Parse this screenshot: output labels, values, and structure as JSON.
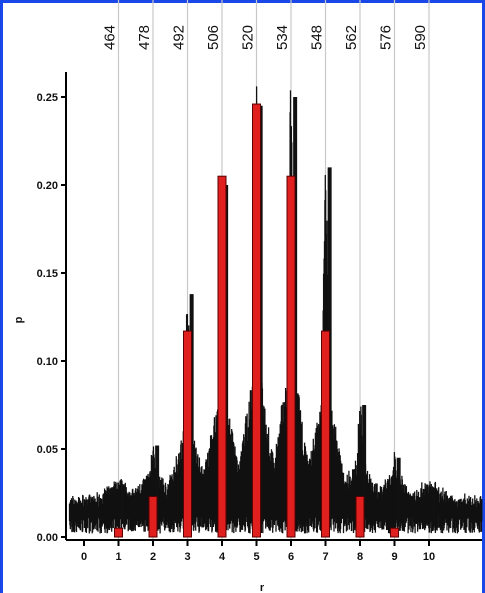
{
  "chart_data": {
    "type": "bar",
    "title": "",
    "xlabel": "r",
    "ylabel": "p",
    "x_ticks": [
      "0",
      "1",
      "2",
      "3",
      "4",
      "5",
      "6",
      "7",
      "8",
      "9",
      "10"
    ],
    "y_ticks": [
      "0.00",
      "0.05",
      "0.10",
      "0.15",
      "0.20",
      "0.25"
    ],
    "ylim": [
      0,
      0.27
    ],
    "top_axis_labels": [
      "464",
      "478",
      "492",
      "506",
      "520",
      "534",
      "548",
      "562",
      "576",
      "590"
    ],
    "top_axis_positions": [
      1,
      2,
      3,
      4,
      5,
      6,
      7,
      8,
      9,
      10
    ],
    "series": [
      {
        "values": [
          {
            "x": 1,
            "y": 0.005
          },
          {
            "x": 2,
            "y": 0.023
          },
          {
            "x": 3,
            "y": 0.117
          },
          {
            "x": 4,
            "y": 0.205
          },
          {
            "x": 5,
            "y": 0.246
          },
          {
            "x": 6,
            "y": 0.205
          },
          {
            "x": 7,
            "y": 0.117
          },
          {
            "x": 8,
            "y": 0.023
          },
          {
            "x": 9,
            "y": 0.005
          }
        ]
      },
      {
        "style": "noisy-spectrum",
        "peaks": [
          {
            "x": 1,
            "y": 0.03
          },
          {
            "x": 2,
            "y": 0.052
          },
          {
            "x": 3,
            "y": 0.138
          },
          {
            "x": 4,
            "y": 0.2
          },
          {
            "x": 5,
            "y": 0.245
          },
          {
            "x": 6,
            "y": 0.25
          },
          {
            "x": 7,
            "y": 0.21
          },
          {
            "x": 8,
            "y": 0.075
          },
          {
            "x": 9,
            "y": 0.045
          },
          {
            "x": 10,
            "y": 0.028
          }
        ],
        "baseline": 0.02
      }
    ],
    "grid": "vertical lines at top-axis positions",
    "colors": {
      "bars": "#e0201e",
      "spectrum": "#111111",
      "frame": "#1a47e8",
      "gridlines": "#c8c8c8"
    }
  }
}
